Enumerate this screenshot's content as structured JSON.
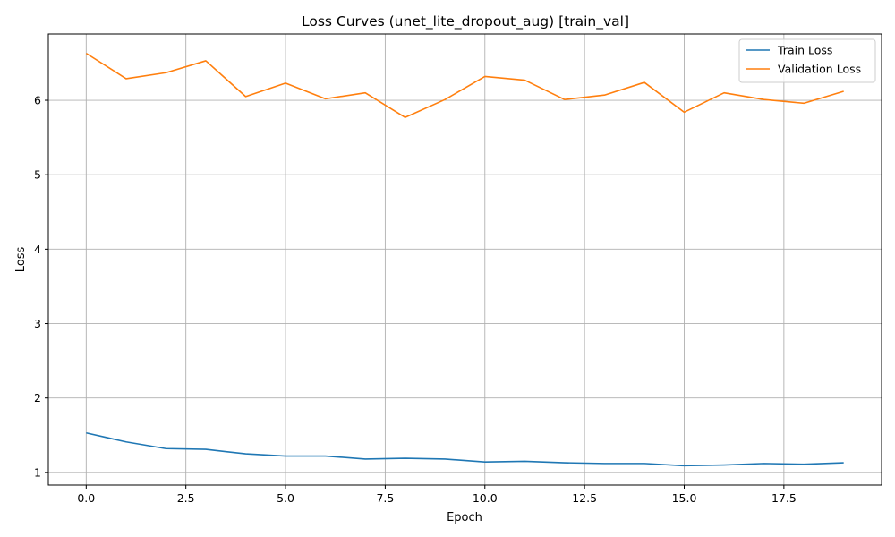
{
  "chart_data": {
    "type": "line",
    "title": "Loss Curves (unet_lite_dropout_aug) [train_val]",
    "xlabel": "Epoch",
    "ylabel": "Loss",
    "x": [
      0,
      1,
      2,
      3,
      4,
      5,
      6,
      7,
      8,
      9,
      10,
      11,
      12,
      13,
      14,
      15,
      16,
      17,
      18,
      19
    ],
    "series": [
      {
        "name": "Train Loss",
        "color": "#1f77b4",
        "values": [
          1.53,
          1.41,
          1.32,
          1.31,
          1.25,
          1.22,
          1.22,
          1.18,
          1.19,
          1.18,
          1.14,
          1.15,
          1.13,
          1.12,
          1.12,
          1.09,
          1.1,
          1.12,
          1.11,
          1.13
        ]
      },
      {
        "name": "Validation Loss",
        "color": "#ff7f0e",
        "values": [
          6.63,
          6.29,
          6.37,
          6.53,
          6.05,
          6.23,
          6.02,
          6.1,
          5.77,
          6.01,
          6.32,
          6.27,
          6.01,
          6.07,
          6.24,
          5.84,
          6.1,
          6.01,
          5.96,
          6.12
        ]
      }
    ],
    "xlim": [
      -0.95,
      19.95
    ],
    "ylim": [
      0.83,
      6.89
    ],
    "xticks": [
      0.0,
      2.5,
      5.0,
      7.5,
      10.0,
      12.5,
      15.0,
      17.5
    ],
    "xtick_labels": [
      "0.0",
      "2.5",
      "5.0",
      "7.5",
      "10.0",
      "12.5",
      "15.0",
      "17.5"
    ],
    "yticks": [
      1,
      2,
      3,
      4,
      5,
      6
    ],
    "ytick_labels": [
      "1",
      "2",
      "3",
      "4",
      "5",
      "6"
    ],
    "grid": true,
    "legend_position": "upper-right"
  }
}
